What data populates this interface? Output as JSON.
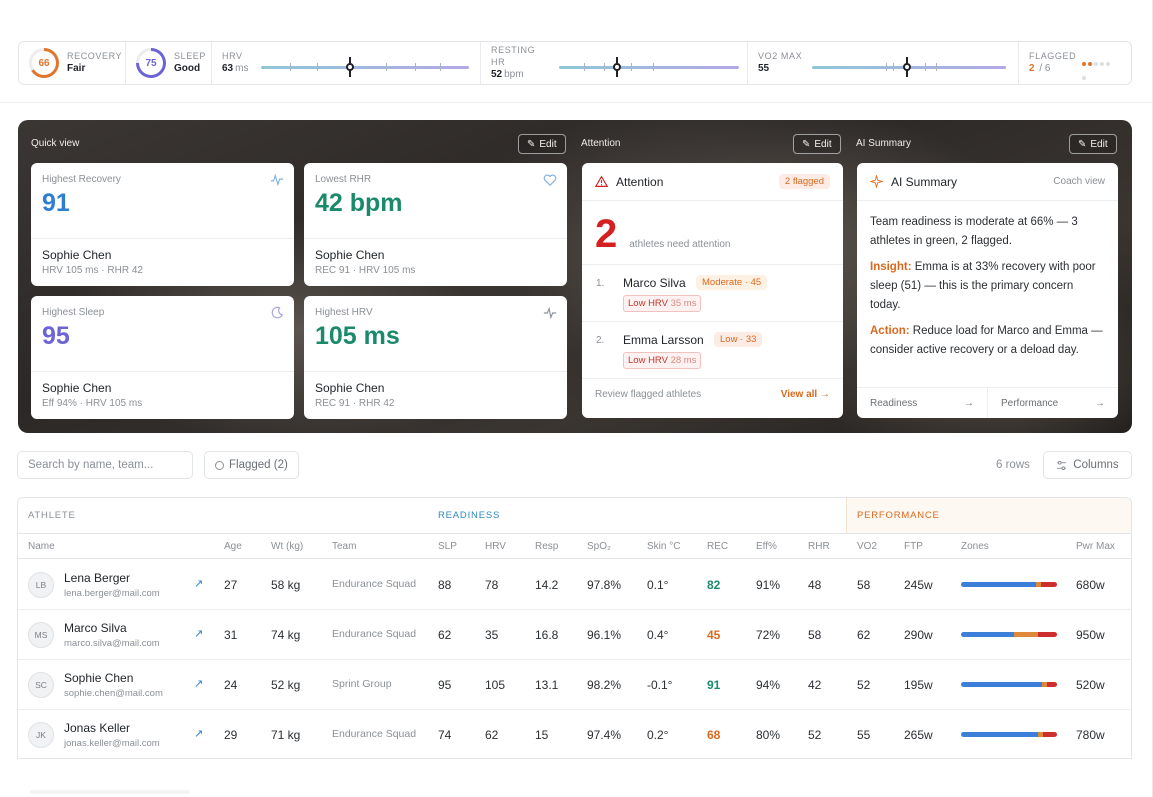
{
  "metrics": {
    "recovery": {
      "label": "RECOVERY",
      "score": "66",
      "value": "Fair",
      "pct": 0.66,
      "color": "#e0752b"
    },
    "sleep": {
      "label": "SLEEP",
      "score": "75",
      "value": "Good",
      "pct": 0.75,
      "color": "#6b63d6"
    },
    "hrv": {
      "label": "HRV",
      "value": "63",
      "unit": "ms",
      "position": 0.43
    },
    "resting_hr": {
      "label": "RESTING HR",
      "value": "52",
      "unit": "bpm",
      "position": 0.32
    },
    "vo2max": {
      "label": "VO2 MAX",
      "value": "55",
      "position": 0.49
    },
    "flagged": {
      "label": "FLAGGED",
      "count": "2",
      "total": "/ 6"
    }
  },
  "hero": {
    "quick_view_label": "Quick view",
    "attention_label": "Attention",
    "ai_label": "AI Summary",
    "edit_label": "Edit"
  },
  "quick_cards": [
    {
      "label": "Highest Recovery",
      "value": "91",
      "name": "Sophie Chen",
      "sub": "HRV 105 ms · RHR 42",
      "color": "#2f7fd1",
      "icon": "activity-icon"
    },
    {
      "label": "Lowest RHR",
      "value": "42 bpm",
      "name": "Sophie Chen",
      "sub": "REC 91 · HRV 105 ms",
      "color": "#1b8a6b",
      "icon": "heart-icon"
    },
    {
      "label": "Highest Sleep",
      "value": "95",
      "name": "Sophie Chen",
      "sub": "Eff 94% · HRV 105 ms",
      "color": "#6b63d6",
      "icon": "moon-icon"
    },
    {
      "label": "Highest HRV",
      "value": "105 ms",
      "name": "Sophie Chen",
      "sub": "REC 91 · RHR 42",
      "color": "#1b8a6b",
      "icon": "pulse-icon"
    }
  ],
  "attention": {
    "title": "Attention",
    "badge": "2 flagged",
    "count": "2",
    "count_text": "athletes need attention",
    "items": [
      {
        "idx": "1.",
        "name": "Marco Silva",
        "level": "Moderate · 45",
        "hrv_label": "Low HRV",
        "hrv_value": "35 ms"
      },
      {
        "idx": "2.",
        "name": "Emma Larsson",
        "level": "Low · 33",
        "hrv_label": "Low HRV",
        "hrv_value": "28 ms"
      }
    ],
    "footer": "Review flagged athletes",
    "view_all": "View all →"
  },
  "ai_summary": {
    "title": "AI Summary",
    "coach_view": "Coach view",
    "p1": "Team readiness is moderate at 66% — 3 athletes in green, 2 flagged.",
    "insight_label": "Insight:",
    "insight": " Emma is at 33% recovery with poor sleep (51) — this is the primary concern today.",
    "action_label": "Action:",
    "action": " Reduce load for Marco and Emma — consider active recovery or a deload day.",
    "link1": "Readiness",
    "link2": "Performance"
  },
  "toolbar": {
    "search_placeholder": "Search by name, team...",
    "flagged_filter": "Flagged (2)",
    "rows": "6 rows",
    "columns": "Columns"
  },
  "table": {
    "groups": {
      "athlete": "ATHLETE",
      "readiness": "READINESS",
      "performance": "PERFORMANCE"
    },
    "headers": {
      "name": "Name",
      "age": "Age",
      "wt": "Wt (kg)",
      "team": "Team",
      "slp": "SLP",
      "hrv": "HRV",
      "resp": "Resp",
      "spo2": "SpO₂",
      "skin": "Skin °C",
      "rec": "REC",
      "eff": "Eff%",
      "rhr": "RHR",
      "vo2": "VO2",
      "ftp": "FTP",
      "zones": "Zones",
      "pwr": "Pwr Max"
    },
    "rows": [
      {
        "initials": "LB",
        "name": "Lena Berger",
        "email": "lena.berger@mail.com",
        "age": "27",
        "wt": "58 kg",
        "team": "Endurance Squad",
        "slp": "88",
        "hrv": "78",
        "resp": "14.2",
        "spo2": "97.8%",
        "skin": "0.1°",
        "rec": "82",
        "rec_color": "#1b8a6b",
        "eff": "91%",
        "rhr": "48",
        "vo2": "58",
        "ftp": "245w",
        "pwr": "680w",
        "zones": [
          0.78,
          0.05,
          0.17
        ]
      },
      {
        "initials": "MS",
        "name": "Marco Silva",
        "email": "marco.silva@mail.com",
        "age": "31",
        "wt": "74 kg",
        "team": "Endurance Squad",
        "slp": "62",
        "hrv": "35",
        "resp": "16.8",
        "spo2": "96.1%",
        "skin": "0.4°",
        "rec": "45",
        "rec_color": "#d9691e",
        "eff": "72%",
        "rhr": "58",
        "vo2": "62",
        "ftp": "290w",
        "pwr": "950w",
        "zones": [
          0.55,
          0.25,
          0.2
        ]
      },
      {
        "initials": "SC",
        "name": "Sophie Chen",
        "email": "sophie.chen@mail.com",
        "age": "24",
        "wt": "52 kg",
        "team": "Sprint Group",
        "slp": "95",
        "hrv": "105",
        "resp": "13.1",
        "spo2": "98.2%",
        "skin": "-0.1°",
        "rec": "91",
        "rec_color": "#1b8a6b",
        "eff": "94%",
        "rhr": "42",
        "vo2": "52",
        "ftp": "195w",
        "pwr": "520w",
        "zones": [
          0.84,
          0.06,
          0.1
        ]
      },
      {
        "initials": "JK",
        "name": "Jonas Keller",
        "email": "jonas.keller@mail.com",
        "age": "29",
        "wt": "71 kg",
        "team": "Endurance Squad",
        "slp": "74",
        "hrv": "62",
        "resp": "15",
        "spo2": "97.4%",
        "skin": "0.2°",
        "rec": "68",
        "rec_color": "#d9691e",
        "eff": "80%",
        "rhr": "52",
        "vo2": "55",
        "ftp": "265w",
        "pwr": "780w",
        "zones": [
          0.8,
          0.05,
          0.15
        ]
      }
    ]
  },
  "colors": {
    "zone1": "#3b7fd9",
    "zone2": "#e0883a",
    "zone3": "#cf2e2e"
  }
}
